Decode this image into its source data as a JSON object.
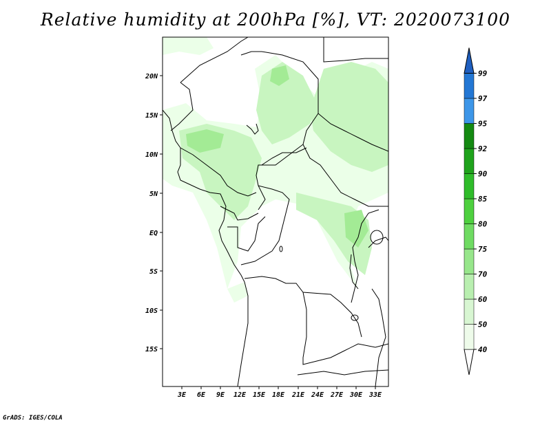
{
  "title": "Relative humidity at 200hPa [%], VT: 2020073100",
  "credit": "GrADS: IGES/COLA",
  "map": {
    "lat_labels": [
      "20N",
      "15N",
      "10N",
      "5N",
      "EQ",
      "5S",
      "10S",
      "15S"
    ],
    "lon_labels": [
      "3E",
      "6E",
      "9E",
      "12E",
      "15E",
      "18E",
      "21E",
      "24E",
      "27E",
      "30E",
      "33E"
    ],
    "fill_colors": [
      "#ebffe8",
      "#c8f5c0",
      "#a3eb95",
      "#7ed86e"
    ]
  },
  "colorbar": {
    "labels": [
      "40",
      "50",
      "60",
      "70",
      "75",
      "80",
      "85",
      "90",
      "92",
      "95",
      "97",
      "99"
    ],
    "colors": [
      "#ffffff",
      "#eefbea",
      "#d8f6d2",
      "#b9efb0",
      "#97e68b",
      "#6fdb62",
      "#4ed03f",
      "#2fbc2a",
      "#1fa31c",
      "#148a12",
      "#3d96e8",
      "#2377d4",
      "#1f5fc0"
    ]
  }
}
